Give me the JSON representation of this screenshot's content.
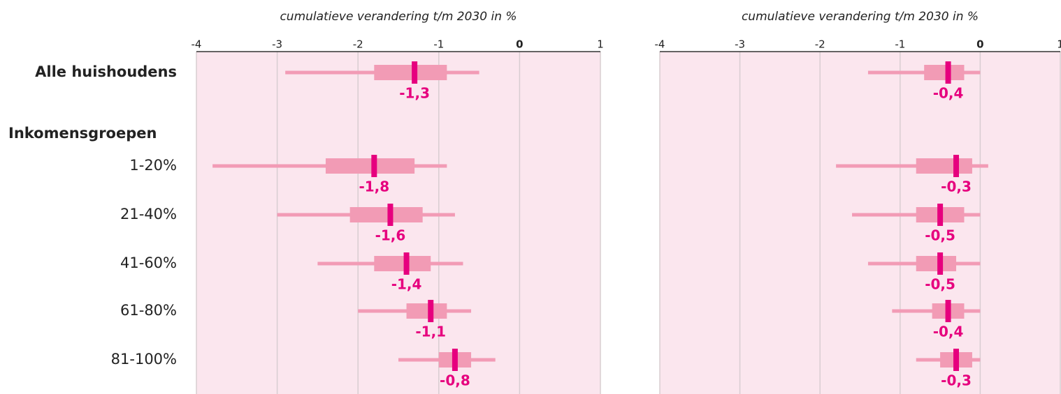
{
  "categories": [
    "Alle huishoudens",
    "1-20%",
    "21-40%",
    "41-60%",
    "61-80%",
    "81-100%"
  ],
  "group_label": "Inkomensgroepen",
  "chart_data": [
    {
      "type": "box",
      "xlabel": "cumulatieve verandering t/m 2030 in %",
      "xlim": [
        -4,
        1
      ],
      "xticks": [
        -4,
        -3,
        -2,
        -1,
        0,
        1
      ],
      "grid": true,
      "background": "#fbe6ee",
      "color": "#f29bb5",
      "median_color": "#e6007e",
      "low": [
        -2.9,
        -3.8,
        -3.0,
        -2.5,
        -2.0,
        -1.5
      ],
      "q1": [
        -1.8,
        -2.4,
        -2.1,
        -1.8,
        -1.4,
        -1.0
      ],
      "median": [
        -1.3,
        -1.8,
        -1.6,
        -1.4,
        -1.1,
        -0.8
      ],
      "q3": [
        -0.9,
        -1.3,
        -1.2,
        -1.1,
        -0.9,
        -0.6
      ],
      "high": [
        -0.5,
        -0.9,
        -0.8,
        -0.7,
        -0.6,
        -0.3
      ],
      "value_labels": [
        "-1,3",
        "-1,8",
        "-1,6",
        "-1,4",
        "-1,1",
        "-0,8"
      ]
    },
    {
      "type": "box",
      "xlabel": "cumulatieve verandering t/m 2030 in %",
      "xlim": [
        -4,
        1
      ],
      "xticks": [
        -4,
        -3,
        -2,
        -1,
        0,
        1
      ],
      "grid": true,
      "background": "#fbe6ee",
      "color": "#f29bb5",
      "median_color": "#e6007e",
      "low": [
        -1.4,
        -1.8,
        -1.6,
        -1.4,
        -1.1,
        -0.8
      ],
      "q1": [
        -0.7,
        -0.8,
        -0.8,
        -0.8,
        -0.6,
        -0.5
      ],
      "median": [
        -0.4,
        -0.3,
        -0.5,
        -0.5,
        -0.4,
        -0.3
      ],
      "q3": [
        -0.2,
        -0.1,
        -0.2,
        -0.3,
        -0.2,
        -0.1
      ],
      "high": [
        0,
        0.1,
        0,
        0,
        0,
        0
      ],
      "value_labels": [
        "-0,4",
        "-0,3",
        "-0,5",
        "-0,5",
        "-0,4",
        "-0,3"
      ]
    }
  ]
}
